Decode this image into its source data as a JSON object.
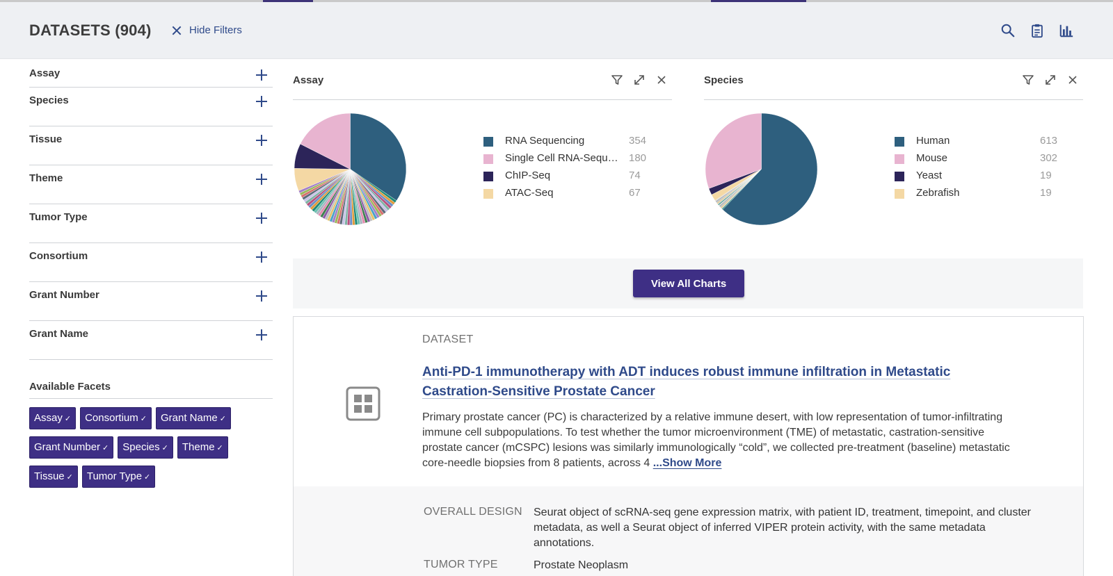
{
  "header": {
    "title": "DATASETS (904)",
    "hide_filters_label": "Hide Filters",
    "tools": [
      "search-icon",
      "clipboard-icon",
      "bar-chart-icon"
    ]
  },
  "sidebar": {
    "facets": [
      {
        "label": "Assay"
      },
      {
        "label": "Species"
      },
      {
        "label": "Tissue"
      },
      {
        "label": "Theme"
      },
      {
        "label": "Tumor Type"
      },
      {
        "label": "Consortium"
      },
      {
        "label": "Grant Number"
      },
      {
        "label": "Grant Name"
      }
    ],
    "available_title": "Available Facets",
    "chips": [
      {
        "label": "Assay",
        "check": "✓"
      },
      {
        "label": "Consortium",
        "check": "✓"
      },
      {
        "label": "Grant Name",
        "check": "✓"
      },
      {
        "label": "Grant Number",
        "check": "✓"
      },
      {
        "label": "Species",
        "check": "✓"
      },
      {
        "label": "Theme",
        "check": "✓"
      },
      {
        "label": "Tissue",
        "check": "✓"
      },
      {
        "label": "Tumor Type",
        "check": "✓"
      }
    ]
  },
  "charts": {
    "assay": {
      "title": "Assay",
      "legend": [
        {
          "label": "RNA Sequencing",
          "count": "354",
          "color": "#2e5f7e"
        },
        {
          "label": "Single Cell RNA-Seque...",
          "count": "180",
          "color": "#e8b4d0"
        },
        {
          "label": "ChIP-Seq",
          "count": "74",
          "color": "#2c2459"
        },
        {
          "label": "ATAC-Seq",
          "count": "67",
          "color": "#f4d8a4"
        }
      ]
    },
    "species": {
      "title": "Species",
      "legend": [
        {
          "label": "Human",
          "count": "613",
          "color": "#2e5f7e"
        },
        {
          "label": "Mouse",
          "count": "302",
          "color": "#e8b4d0"
        },
        {
          "label": "Yeast",
          "count": "19",
          "color": "#2c2459"
        },
        {
          "label": "Zebrafish",
          "count": "19",
          "color": "#f4d8a4"
        }
      ]
    }
  },
  "view_all_label": "View All Charts",
  "result": {
    "kind": "DATASET",
    "title": "Anti-PD-1 immunotherapy with ADT induces robust immune infiltration in Metastatic Castration-Sensitive Prostate Cancer",
    "description": "Primary prostate cancer (PC) is characterized by a relative immune desert, with low representation of tumor-infiltrating immune cell subpopulations. To test whether the tumor microenvironment (TME) of metastatic, castration-sensitive prostate cancer (mCSPC) lesions was similarly immunologically “cold”, we collected pre-treatment (baseline) metastatic core-needle biopsies from 8 patients, across 4",
    "show_more": "...Show More",
    "details": [
      {
        "key": "OVERALL DESIGN",
        "value": "Seurat object of scRNA-seq gene expression matrix, with patient ID, treatment, timepoint, and cluster metadata, as well a Seurat object of inferred VIPER protein activity, with the same metadata annotations."
      },
      {
        "key": "TUMOR TYPE",
        "value": "Prostate Neoplasm"
      }
    ]
  }
}
